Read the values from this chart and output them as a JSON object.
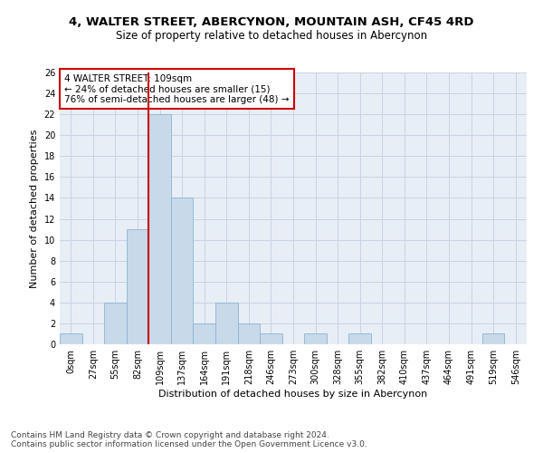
{
  "title1": "4, WALTER STREET, ABERCYNON, MOUNTAIN ASH, CF45 4RD",
  "title2": "Size of property relative to detached houses in Abercynon",
  "xlabel": "Distribution of detached houses by size in Abercynon",
  "ylabel": "Number of detached properties",
  "bar_heights": [
    1,
    0,
    4,
    11,
    22,
    14,
    2,
    4,
    2,
    1,
    0,
    1,
    0,
    1,
    0,
    0,
    0,
    0,
    0,
    1,
    0
  ],
  "x_labels": [
    "0sqm",
    "27sqm",
    "55sqm",
    "82sqm",
    "109sqm",
    "137sqm",
    "164sqm",
    "191sqm",
    "218sqm",
    "246sqm",
    "273sqm",
    "300sqm",
    "328sqm",
    "355sqm",
    "382sqm",
    "410sqm",
    "437sqm",
    "464sqm",
    "491sqm",
    "519sqm",
    "546sqm"
  ],
  "bar_color": "#c8d9ea",
  "bar_edge_color": "#8ab4d4",
  "grid_color": "#c8d4e3",
  "bg_color": "#e8eef5",
  "annotation_box_color": "#cc0000",
  "annotation_text": "4 WALTER STREET: 109sqm\n← 24% of detached houses are smaller (15)\n76% of semi-detached houses are larger (48) →",
  "property_line_x": 4,
  "ylim": [
    0,
    26
  ],
  "yticks": [
    0,
    2,
    4,
    6,
    8,
    10,
    12,
    14,
    16,
    18,
    20,
    22,
    24,
    26
  ],
  "footer1": "Contains HM Land Registry data © Crown copyright and database right 2024.",
  "footer2": "Contains public sector information licensed under the Open Government Licence v3.0.",
  "title1_fontsize": 9.5,
  "title2_fontsize": 8.5,
  "xlabel_fontsize": 8,
  "ylabel_fontsize": 8,
  "tick_fontsize": 7,
  "annotation_fontsize": 7.5,
  "footer_fontsize": 6.5
}
